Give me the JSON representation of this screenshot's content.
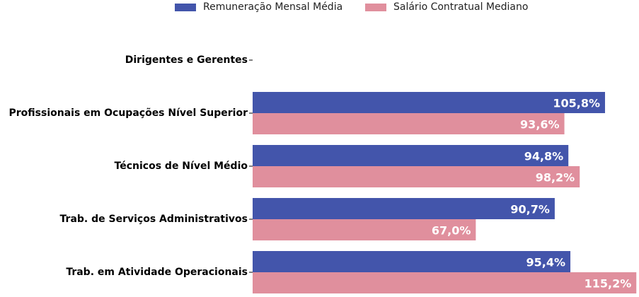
{
  "chart_data": {
    "type": "bar",
    "orientation": "horizontal",
    "title": "",
    "xlabel": "",
    "ylabel": "",
    "legend_position": "top-center",
    "grid": false,
    "xlim": [
      0,
      116
    ],
    "categories": [
      "Dirigentes e Gerentes",
      "Profissionais em Ocupações Nível Superior",
      "Técnicos de Nível Médio",
      "Trab. de Serviços Administrativos",
      "Trab. em Atividade Operacionais"
    ],
    "series": [
      {
        "name": "Remuneração Mensal Média",
        "color": "#4355ab",
        "values": [
          null,
          105.8,
          94.8,
          90.7,
          95.4
        ],
        "labels": [
          "",
          "105,8%",
          "94,8%",
          "90,7%",
          "95,4%"
        ]
      },
      {
        "name": "Salário Contratual Mediano",
        "color": "#e08f9d",
        "values": [
          null,
          93.6,
          98.2,
          67.0,
          115.2
        ],
        "labels": [
          "",
          "93,6%",
          "98,2%",
          "67,0%",
          "115,2%"
        ]
      }
    ]
  }
}
